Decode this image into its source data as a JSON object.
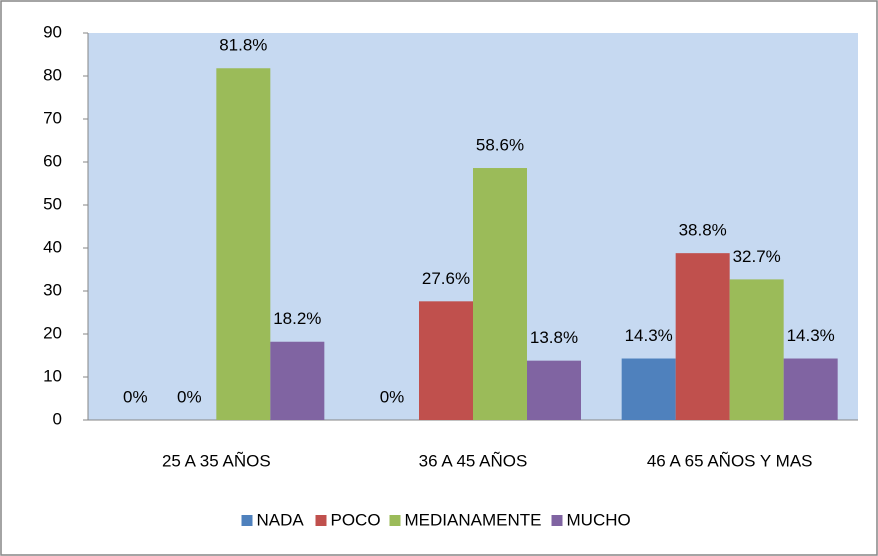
{
  "chart_data": {
    "type": "bar",
    "categories": [
      "25  A 35 AÑOS",
      "36 A 45 AÑOS",
      "46 A 65 AÑOS Y MAS"
    ],
    "series": [
      {
        "name": "NADA",
        "color": "#4f81bd",
        "values": [
          0,
          0,
          14.3
        ],
        "value_labels": [
          "0%",
          "0%",
          "14.3%"
        ]
      },
      {
        "name": "POCO",
        "color": "#c0504d",
        "values": [
          0,
          27.6,
          38.8
        ],
        "value_labels": [
          "0%",
          "27.6%",
          "38.8%"
        ]
      },
      {
        "name": "MEDIANAMENTE",
        "color": "#9bbb59",
        "values": [
          81.8,
          58.6,
          32.7
        ],
        "value_labels": [
          "81.8%",
          "58.6%",
          "32.7%"
        ]
      },
      {
        "name": "MUCHO",
        "color": "#8064a2",
        "values": [
          18.2,
          13.8,
          14.3
        ],
        "value_labels": [
          "18.2%",
          "13.8%",
          "14.3%"
        ]
      }
    ],
    "ylim": [
      0,
      90
    ],
    "yticks": [
      0,
      10,
      20,
      30,
      40,
      50,
      60,
      70,
      80,
      90
    ],
    "legend": "bottom",
    "grid": false
  }
}
